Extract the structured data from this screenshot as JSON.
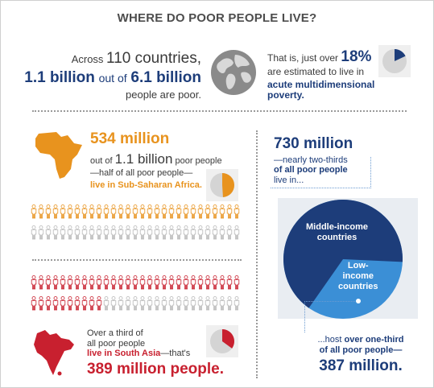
{
  "title": "WHERE DO POOR PEOPLE LIVE?",
  "top": {
    "line1_prefix": "Across",
    "line1_number": "110 countries,",
    "line2_a": "1.1 billion",
    "line2_mid": "out of",
    "line2_b": "6.1 billion",
    "line3": "people are poor.",
    "right_line1": "That is, just over",
    "right_pct": "18%",
    "right_line2": "are estimated to live in",
    "right_line3": "acute multidimensional poverty.",
    "pie_fraction": 0.18
  },
  "africa": {
    "headline": "534 million",
    "line1_prefix": "out of",
    "line1_number": "1.1 billion",
    "line1_suffix": "poor people",
    "line2": "—half of all poor people—",
    "line3": "live in Sub-Saharan Africa.",
    "pie_fraction": 0.49,
    "figures_highlight_of_total": "22 of 44 per row shown orange"
  },
  "asia": {
    "line1": "Over a third of",
    "line2": "all poor people",
    "line3_a": "live in South Asia",
    "line3_b": "—that's",
    "headline": "389 million people.",
    "pie_fraction": 0.35
  },
  "middle": {
    "headline": "730 million",
    "line1": "—nearly two-thirds",
    "line2": "of all poor people",
    "line3": "live in...",
    "pie_label_middle_1": "Middle-income",
    "pie_label_middle_2": "countries",
    "pie_label_low_1": "Low-",
    "pie_label_low_2": "income",
    "pie_label_low_3": "countries",
    "middle_fraction": 0.66,
    "bottom_line1_a": "...host",
    "bottom_line1_b": "over one-third",
    "bottom_line2": "of all poor people—",
    "bottom_headline": "387 million."
  },
  "colors": {
    "navy": "#1d3d7a",
    "orange": "#e8931e",
    "red": "#c8202f",
    "light_blue": "#3b8fd6",
    "grey": "#d4d4d4"
  }
}
